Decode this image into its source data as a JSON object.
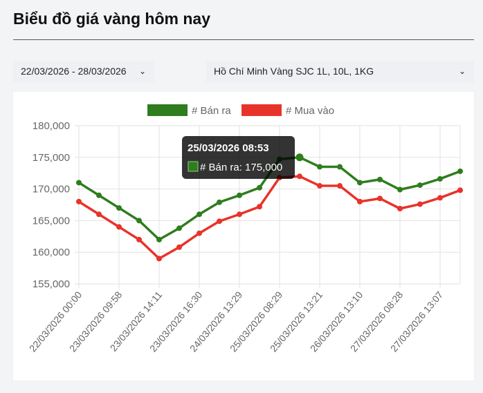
{
  "header": {
    "title": "Biểu đồ giá vàng hôm nay"
  },
  "filters": {
    "date_range": "22/03/2026 - 28/03/2026",
    "product": "Hồ Chí Minh Vàng SJC 1L, 10L, 1KG"
  },
  "tooltip": {
    "title": "25/03/2026 08:53",
    "label": "# Bán ra: 175,000"
  },
  "chart_data": {
    "type": "line",
    "categories": [
      "22/03/2026 00:00",
      "",
      "23/03/2026 09:58",
      "",
      "23/03/2026 14:11",
      "",
      "23/03/2026 16:30",
      "",
      "24/03/2026 13:29",
      "",
      "25/03/2026 08:29",
      "25/03/2026 08:53",
      "25/03/2026 13:21",
      "",
      "26/03/2026 13:10",
      "",
      "27/03/2026 08:28",
      "",
      "27/03/2026 13:07",
      ""
    ],
    "series": [
      {
        "name": "# Bán ra",
        "color": "#2e7d1e",
        "values": [
          171000,
          169000,
          167000,
          165000,
          162000,
          163800,
          166000,
          167900,
          169000,
          170200,
          174700,
          175000,
          173500,
          173500,
          171000,
          171500,
          169900,
          170600,
          171600,
          172800
        ]
      },
      {
        "name": "# Mua vào",
        "color": "#e8332a",
        "values": [
          168000,
          166000,
          164000,
          162000,
          159000,
          160800,
          163000,
          164900,
          166000,
          167200,
          171800,
          172000,
          170500,
          170500,
          168000,
          168500,
          166900,
          167600,
          168600,
          169800
        ]
      }
    ],
    "yticks": [
      "155,000",
      "160,000",
      "165,000",
      "170,000",
      "175,000",
      "180,000"
    ],
    "ylim": [
      155000,
      180000
    ],
    "grid": true,
    "legend": "top"
  }
}
